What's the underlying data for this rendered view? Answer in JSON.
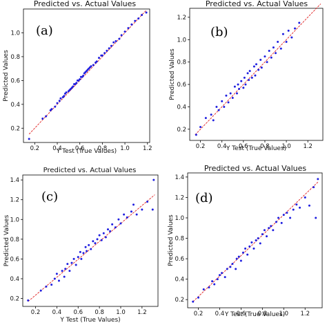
{
  "chart_data": [
    {
      "type": "scatter",
      "panel_label": "(a)",
      "title": "Predicted vs. Actual Values",
      "xlabel": "Y Test (True Values)",
      "ylabel": "Predicted Values",
      "xlim": [
        0.1,
        1.22
      ],
      "ylim": [
        0.08,
        1.2
      ],
      "xticks": [
        0.2,
        0.4,
        0.6,
        0.8,
        1.0,
        1.2
      ],
      "yticks": [
        0.2,
        0.4,
        0.6,
        0.8,
        1.0
      ],
      "xtick_labels": [
        "0.2",
        "0.4",
        "0.6",
        "0.8",
        "1.0",
        "1.2"
      ],
      "ytick_labels": [
        "0.2",
        "0.4",
        "0.6",
        "0.8",
        "1.0"
      ],
      "grid": false,
      "reference_line": [
        [
          0.15,
          0.15
        ],
        [
          1.19,
          1.19
        ]
      ],
      "colors": {
        "points": "#1f1fe0",
        "line": "#e02020"
      },
      "series": [
        {
          "values": [
            [
              0.15,
              0.11
            ],
            [
              0.27,
              0.28
            ],
            [
              0.3,
              0.3
            ],
            [
              0.34,
              0.35
            ],
            [
              0.35,
              0.36
            ],
            [
              0.38,
              0.38
            ],
            [
              0.4,
              0.41
            ],
            [
              0.42,
              0.43
            ],
            [
              0.43,
              0.45
            ],
            [
              0.45,
              0.46
            ],
            [
              0.46,
              0.47
            ],
            [
              0.47,
              0.49
            ],
            [
              0.48,
              0.5
            ],
            [
              0.5,
              0.51
            ],
            [
              0.51,
              0.52
            ],
            [
              0.52,
              0.53
            ],
            [
              0.53,
              0.54
            ],
            [
              0.54,
              0.55
            ],
            [
              0.55,
              0.57
            ],
            [
              0.56,
              0.57
            ],
            [
              0.57,
              0.58
            ],
            [
              0.58,
              0.6
            ],
            [
              0.59,
              0.6
            ],
            [
              0.6,
              0.61
            ],
            [
              0.61,
              0.63
            ],
            [
              0.62,
              0.63
            ],
            [
              0.63,
              0.64
            ],
            [
              0.64,
              0.66
            ],
            [
              0.65,
              0.67
            ],
            [
              0.66,
              0.68
            ],
            [
              0.67,
              0.69
            ],
            [
              0.68,
              0.7
            ],
            [
              0.69,
              0.71
            ],
            [
              0.7,
              0.72
            ],
            [
              0.72,
              0.73
            ],
            [
              0.74,
              0.75
            ],
            [
              0.75,
              0.76
            ],
            [
              0.77,
              0.79
            ],
            [
              0.79,
              0.81
            ],
            [
              0.8,
              0.81
            ],
            [
              0.82,
              0.83
            ],
            [
              0.84,
              0.85
            ],
            [
              0.86,
              0.87
            ],
            [
              0.88,
              0.89
            ],
            [
              0.9,
              0.92
            ],
            [
              0.92,
              0.93
            ],
            [
              0.95,
              0.95
            ],
            [
              0.97,
              0.98
            ],
            [
              1.0,
              1.01
            ],
            [
              1.03,
              1.04
            ],
            [
              1.06,
              1.07
            ],
            [
              1.09,
              1.1
            ],
            [
              1.12,
              1.12
            ],
            [
              1.15,
              1.15
            ],
            [
              1.19,
              1.17
            ]
          ]
        }
      ]
    },
    {
      "type": "scatter",
      "panel_label": "(b)",
      "title": "Predicted vs. Actual Values",
      "xlabel": "Y Test (True Values)",
      "ylabel": "Predicted Values",
      "xlim": [
        0.1,
        1.34
      ],
      "ylim": [
        0.1,
        1.28
      ],
      "xticks": [
        0.2,
        0.4,
        0.6,
        0.8,
        1.0,
        1.2
      ],
      "yticks": [
        0.2,
        0.4,
        0.6,
        0.8,
        1.0,
        1.2
      ],
      "xtick_labels": [
        "0.2",
        "0.4",
        "0.6",
        "0.8",
        "1.0",
        "1.2"
      ],
      "ytick_labels": [
        "0.2",
        "0.4",
        "0.6",
        "0.8",
        "1.0",
        "1.2"
      ],
      "grid": false,
      "reference_line": [
        [
          0.15,
          0.15
        ],
        [
          1.32,
          1.32
        ]
      ],
      "colors": {
        "points": "#1f1fe0",
        "line": "#e02020"
      },
      "series": [
        {
          "values": [
            [
              0.16,
              0.15
            ],
            [
              0.2,
              0.22
            ],
            [
              0.25,
              0.3
            ],
            [
              0.3,
              0.33
            ],
            [
              0.32,
              0.28
            ],
            [
              0.35,
              0.4
            ],
            [
              0.37,
              0.37
            ],
            [
              0.4,
              0.45
            ],
            [
              0.42,
              0.4
            ],
            [
              0.44,
              0.5
            ],
            [
              0.46,
              0.44
            ],
            [
              0.48,
              0.52
            ],
            [
              0.5,
              0.48
            ],
            [
              0.52,
              0.58
            ],
            [
              0.54,
              0.52
            ],
            [
              0.55,
              0.6
            ],
            [
              0.56,
              0.56
            ],
            [
              0.58,
              0.63
            ],
            [
              0.6,
              0.57
            ],
            [
              0.61,
              0.66
            ],
            [
              0.62,
              0.6
            ],
            [
              0.64,
              0.7
            ],
            [
              0.65,
              0.64
            ],
            [
              0.66,
              0.72
            ],
            [
              0.68,
              0.66
            ],
            [
              0.7,
              0.76
            ],
            [
              0.71,
              0.68
            ],
            [
              0.72,
              0.78
            ],
            [
              0.74,
              0.73
            ],
            [
              0.76,
              0.82
            ],
            [
              0.77,
              0.75
            ],
            [
              0.8,
              0.85
            ],
            [
              0.82,
              0.8
            ],
            [
              0.84,
              0.9
            ],
            [
              0.86,
              0.84
            ],
            [
              0.88,
              0.93
            ],
            [
              0.9,
              0.88
            ],
            [
              0.92,
              0.98
            ],
            [
              0.95,
              0.92
            ],
            [
              0.97,
              1.05
            ],
            [
              1.0,
              0.98
            ],
            [
              1.02,
              1.08
            ],
            [
              1.05,
              1.02
            ],
            [
              1.08,
              1.1
            ],
            [
              1.12,
              1.15
            ]
          ]
        }
      ]
    },
    {
      "type": "scatter",
      "panel_label": "(c)",
      "title": "Predicted vs. Actual Values",
      "xlabel": "Y Test (True Values)",
      "ylabel": "Predicted Values",
      "xlim": [
        0.08,
        1.35
      ],
      "ylim": [
        0.12,
        1.45
      ],
      "xticks": [
        0.2,
        0.4,
        0.6,
        0.8,
        1.0,
        1.2
      ],
      "yticks": [
        0.2,
        0.4,
        0.6,
        0.8,
        1.0,
        1.2,
        1.4
      ],
      "xtick_labels": [
        "0.2",
        "0.4",
        "0.6",
        "0.8",
        "1.0",
        "1.2"
      ],
      "ytick_labels": [
        "0.2",
        "0.4",
        "0.6",
        "0.8",
        "1.0",
        "1.2",
        "1.4"
      ],
      "grid": false,
      "reference_line": [
        [
          0.13,
          0.17
        ],
        [
          1.32,
          1.25
        ]
      ],
      "colors": {
        "points": "#1f1fe0",
        "line": "#e02020"
      },
      "series": [
        {
          "values": [
            [
              0.13,
              0.18
            ],
            [
              0.25,
              0.28
            ],
            [
              0.3,
              0.32
            ],
            [
              0.35,
              0.34
            ],
            [
              0.38,
              0.4
            ],
            [
              0.4,
              0.45
            ],
            [
              0.42,
              0.38
            ],
            [
              0.45,
              0.48
            ],
            [
              0.47,
              0.42
            ],
            [
              0.48,
              0.5
            ],
            [
              0.5,
              0.55
            ],
            [
              0.52,
              0.48
            ],
            [
              0.54,
              0.56
            ],
            [
              0.56,
              0.6
            ],
            [
              0.58,
              0.54
            ],
            [
              0.6,
              0.62
            ],
            [
              0.62,
              0.67
            ],
            [
              0.63,
              0.6
            ],
            [
              0.65,
              0.66
            ],
            [
              0.67,
              0.72
            ],
            [
              0.68,
              0.68
            ],
            [
              0.7,
              0.74
            ],
            [
              0.72,
              0.7
            ],
            [
              0.74,
              0.78
            ],
            [
              0.76,
              0.76
            ],
            [
              0.78,
              0.8
            ],
            [
              0.8,
              0.84
            ],
            [
              0.82,
              0.79
            ],
            [
              0.84,
              0.86
            ],
            [
              0.86,
              0.82
            ],
            [
              0.88,
              0.9
            ],
            [
              0.9,
              0.88
            ],
            [
              0.92,
              0.95
            ],
            [
              0.95,
              0.92
            ],
            [
              0.98,
              1.0
            ],
            [
              1.0,
              0.96
            ],
            [
              1.03,
              1.05
            ],
            [
              1.06,
              1.02
            ],
            [
              1.1,
              1.08
            ],
            [
              1.12,
              1.15
            ],
            [
              1.15,
              1.05
            ],
            [
              1.2,
              1.1
            ],
            [
              1.25,
              1.18
            ],
            [
              1.3,
              1.1
            ],
            [
              1.31,
              1.4
            ]
          ]
        }
      ]
    },
    {
      "type": "scatter",
      "panel_label": "(d)",
      "title": "Predicted vs. Actual Values",
      "xlabel": "Y Test (True Values)",
      "ylabel": "Predicted Values",
      "xlim": [
        0.1,
        1.36
      ],
      "ylim": [
        0.12,
        1.44
      ],
      "xticks": [
        0.2,
        0.4,
        0.6,
        0.8,
        1.0,
        1.2
      ],
      "yticks": [
        0.2,
        0.4,
        0.6,
        0.8,
        1.0,
        1.2,
        1.4
      ],
      "xtick_labels": [
        "0.2",
        "0.4",
        "0.6",
        "0.8",
        "1.0",
        "1.2"
      ],
      "ytick_labels": [
        "0.2",
        "0.4",
        "0.6",
        "0.8",
        "1.0",
        "1.2",
        "1.4"
      ],
      "grid": false,
      "reference_line": [
        [
          0.15,
          0.18
        ],
        [
          1.32,
          1.35
        ]
      ],
      "colors": {
        "points": "#1f1fe0",
        "line": "#e02020"
      },
      "series": [
        {
          "values": [
            [
              0.15,
              0.18
            ],
            [
              0.2,
              0.22
            ],
            [
              0.25,
              0.3
            ],
            [
              0.3,
              0.32
            ],
            [
              0.33,
              0.38
            ],
            [
              0.35,
              0.35
            ],
            [
              0.38,
              0.4
            ],
            [
              0.4,
              0.44
            ],
            [
              0.42,
              0.46
            ],
            [
              0.45,
              0.42
            ],
            [
              0.47,
              0.5
            ],
            [
              0.5,
              0.52
            ],
            [
              0.52,
              0.55
            ],
            [
              0.55,
              0.5
            ],
            [
              0.56,
              0.6
            ],
            [
              0.58,
              0.62
            ],
            [
              0.6,
              0.58
            ],
            [
              0.62,
              0.66
            ],
            [
              0.64,
              0.7
            ],
            [
              0.66,
              0.64
            ],
            [
              0.68,
              0.72
            ],
            [
              0.7,
              0.76
            ],
            [
              0.72,
              0.7
            ],
            [
              0.74,
              0.78
            ],
            [
              0.76,
              0.8
            ],
            [
              0.78,
              0.75
            ],
            [
              0.8,
              0.84
            ],
            [
              0.82,
              0.88
            ],
            [
              0.84,
              0.82
            ],
            [
              0.86,
              0.9
            ],
            [
              0.88,
              0.92
            ],
            [
              0.9,
              0.88
            ],
            [
              0.93,
              0.96
            ],
            [
              0.95,
              1.0
            ],
            [
              0.98,
              0.95
            ],
            [
              1.0,
              1.03
            ],
            [
              1.03,
              1.05
            ],
            [
              1.06,
              1.0
            ],
            [
              1.09,
              1.08
            ],
            [
              1.12,
              1.13
            ],
            [
              1.15,
              1.1
            ],
            [
              1.2,
              1.2
            ],
            [
              1.24,
              1.12
            ],
            [
              1.28,
              1.3
            ],
            [
              1.3,
              1.0
            ],
            [
              1.32,
              1.38
            ]
          ]
        }
      ]
    }
  ]
}
